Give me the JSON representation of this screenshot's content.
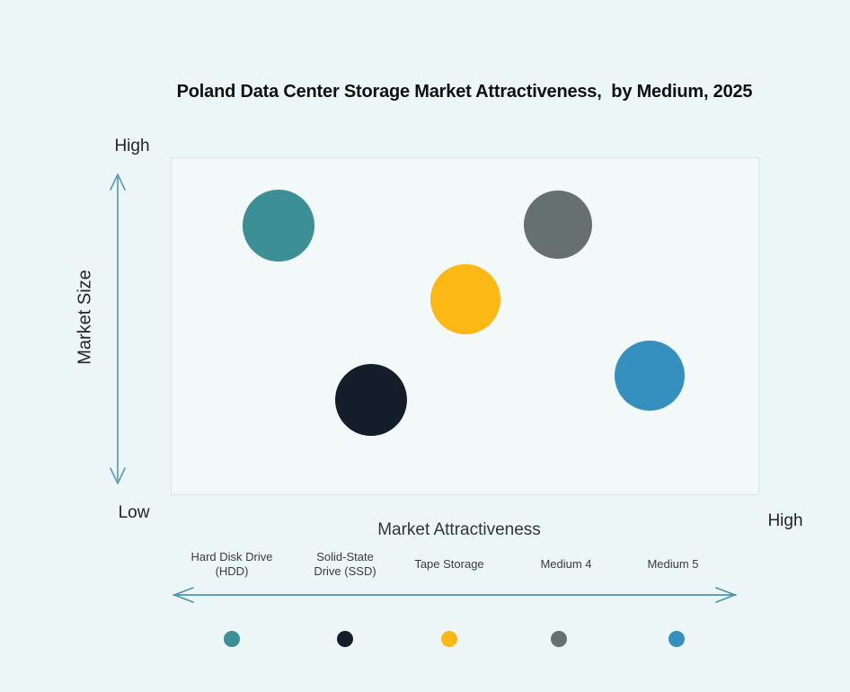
{
  "title": "Poland Data Center Storage Market Attractiveness,  by Medium, 2025",
  "axes": {
    "y_top": "High",
    "y_bottom": "Low",
    "y_label": "Market Size",
    "x_label": "Market Attractiveness",
    "x_right": "High"
  },
  "colors": {
    "background": "#ecf6f7",
    "plot_background": "#f3f9f9",
    "plot_border": "#dde4e5",
    "vertical_arrow": "#5f9cb6",
    "horizontal_arrow": "#4d95ad",
    "title_text": "#101010",
    "teal": "#3d8f96",
    "dark_navy": "#141e2b",
    "yellow": "#fcb815",
    "gray": "#66706f",
    "blue": "#3690bf"
  },
  "chart_data": {
    "type": "scatter",
    "subtype": "bubble",
    "title": "Poland Data Center Storage Market Attractiveness,  by Medium, 2025",
    "xlabel": "Market Attractiveness",
    "ylabel": "Market Size",
    "x_axis_range": [
      "(unlabeled left)",
      "High"
    ],
    "y_axis_range": [
      "Low",
      "High"
    ],
    "axes_qualitative": true,
    "grid": false,
    "legend_position": "bottom",
    "series": [
      {
        "name": "Hard Disk Drive (HDD)",
        "color": "#3d8f96",
        "x": 0.183,
        "y": 0.8,
        "radius_px": 40
      },
      {
        "name": "Solid-State Drive (SSD)",
        "color": "#141e2b",
        "x": 0.34,
        "y": 0.282,
        "radius_px": 40
      },
      {
        "name": "Tape Storage",
        "color": "#fcb815",
        "x": 0.501,
        "y": 0.58,
        "radius_px": 39
      },
      {
        "name": "Medium 4",
        "color": "#66706f",
        "x": 0.658,
        "y": 0.803,
        "radius_px": 38
      },
      {
        "name": "Medium 5",
        "color": "#3690bf",
        "x": 0.814,
        "y": 0.354,
        "radius_px": 39
      }
    ]
  },
  "legend": {
    "items": [
      {
        "label": "Hard Disk Drive\n(HDD)",
        "color": "#3d8f96"
      },
      {
        "label": "Solid-State\nDrive (SSD)",
        "color": "#141e2b"
      },
      {
        "label": "Tape Storage",
        "color": "#fcb815"
      },
      {
        "label": "Medium 4",
        "color": "#66706f"
      },
      {
        "label": "Medium 5",
        "color": "#3690bf"
      }
    ]
  }
}
